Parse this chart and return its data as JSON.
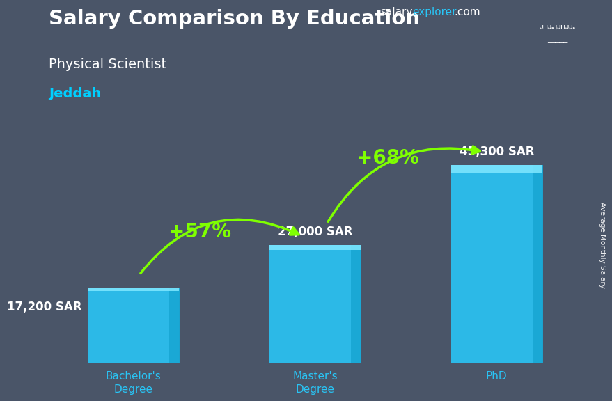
{
  "title_main": "Salary Comparison By Education",
  "subtitle1": "Physical Scientist",
  "subtitle2": "Jeddah",
  "categories": [
    "Bachelor's\nDegree",
    "Master's\nDegree",
    "PhD"
  ],
  "values": [
    17200,
    27000,
    45300
  ],
  "value_labels": [
    "17,200 SAR",
    "27,000 SAR",
    "45,300 SAR"
  ],
  "bar_color": "#29C5F6",
  "bar_highlight": "#5DD8FF",
  "bg_color": "#4a5568",
  "pct_labels": [
    "+57%",
    "+68%"
  ],
  "arrow_color": "#7FFF00",
  "title_color": "#ffffff",
  "subtitle1_color": "#ffffff",
  "subtitle2_color": "#00CFFF",
  "value_label_color": "#ffffff",
  "x_label_color": "#29C5F6",
  "brand_salary_color": "#ffffff",
  "brand_explorer_color": "#29C5F6",
  "brand_com_color": "#ffffff",
  "side_label": "Average Monthly Salary",
  "side_label_color": "#ffffff",
  "flag_color": "#1a7a2a",
  "ylim": [
    0,
    58000
  ],
  "fig_width": 8.5,
  "fig_height": 6.06,
  "x_positions": [
    1.0,
    2.5,
    4.0
  ],
  "bar_width": 0.75
}
